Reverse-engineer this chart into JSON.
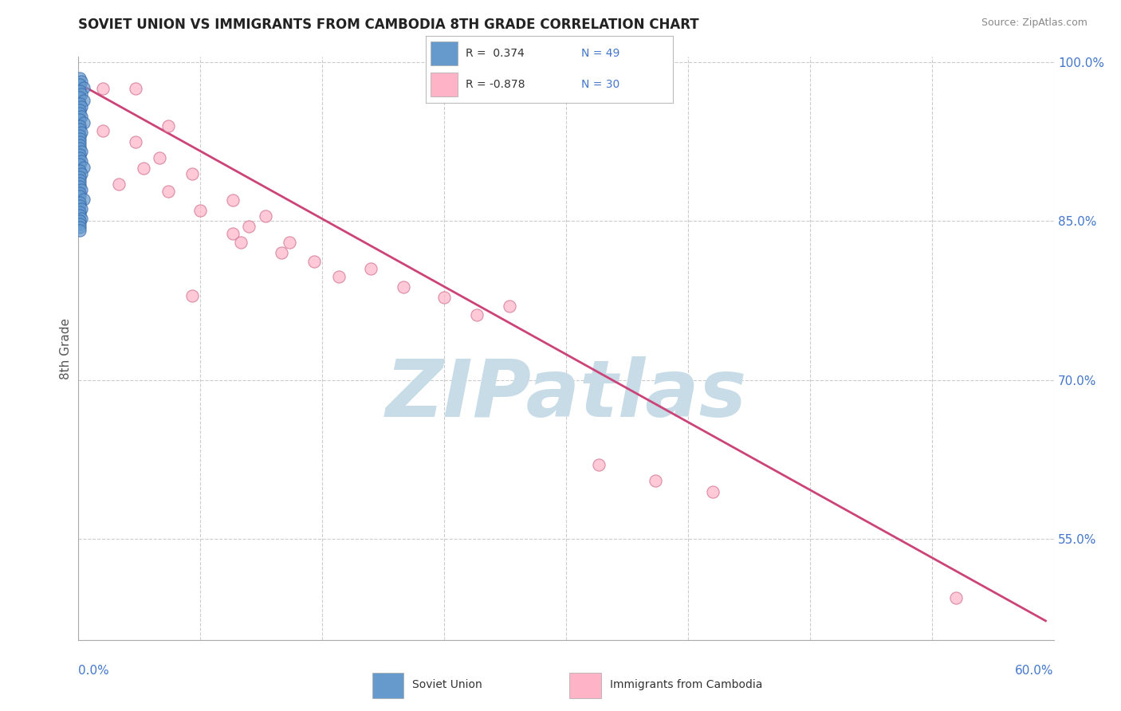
{
  "title": "SOVIET UNION VS IMMIGRANTS FROM CAMBODIA 8TH GRADE CORRELATION CHART",
  "source": "Source: ZipAtlas.com",
  "ylabel": "8th Grade",
  "watermark": "ZIPatlas",
  "legend_blue_R": "0.374",
  "legend_blue_N": "49",
  "legend_pink_R": "-0.878",
  "legend_pink_N": "30",
  "blue_color": "#6699CC",
  "blue_edge_color": "#3366AA",
  "pink_color": "#FFB3C6",
  "pink_edge_color": "#CC6688",
  "pink_line_color": "#CC4477",
  "blue_scatter": [
    [
      0.001,
      0.985
    ],
    [
      0.002,
      0.982
    ],
    [
      0.001,
      0.979
    ],
    [
      0.003,
      0.976
    ],
    [
      0.001,
      0.973
    ],
    [
      0.002,
      0.97
    ],
    [
      0.001,
      0.967
    ],
    [
      0.003,
      0.964
    ],
    [
      0.001,
      0.961
    ],
    [
      0.002,
      0.958
    ],
    [
      0.001,
      0.955
    ],
    [
      0.001,
      0.952
    ],
    [
      0.002,
      0.949
    ],
    [
      0.001,
      0.946
    ],
    [
      0.003,
      0.943
    ],
    [
      0.001,
      0.94
    ],
    [
      0.001,
      0.937
    ],
    [
      0.002,
      0.934
    ],
    [
      0.001,
      0.931
    ],
    [
      0.001,
      0.928
    ],
    [
      0.001,
      0.925
    ],
    [
      0.001,
      0.922
    ],
    [
      0.001,
      0.919
    ],
    [
      0.002,
      0.916
    ],
    [
      0.001,
      0.913
    ],
    [
      0.001,
      0.91
    ],
    [
      0.002,
      0.907
    ],
    [
      0.001,
      0.904
    ],
    [
      0.003,
      0.901
    ],
    [
      0.001,
      0.898
    ],
    [
      0.002,
      0.895
    ],
    [
      0.001,
      0.892
    ],
    [
      0.001,
      0.889
    ],
    [
      0.001,
      0.886
    ],
    [
      0.001,
      0.883
    ],
    [
      0.002,
      0.88
    ],
    [
      0.001,
      0.877
    ],
    [
      0.001,
      0.874
    ],
    [
      0.003,
      0.871
    ],
    [
      0.001,
      0.868
    ],
    [
      0.001,
      0.865
    ],
    [
      0.002,
      0.862
    ],
    [
      0.001,
      0.859
    ],
    [
      0.001,
      0.856
    ],
    [
      0.002,
      0.853
    ],
    [
      0.001,
      0.85
    ],
    [
      0.001,
      0.847
    ],
    [
      0.001,
      0.844
    ],
    [
      0.001,
      0.841
    ]
  ],
  "pink_scatter": [
    [
      0.015,
      0.975
    ],
    [
      0.035,
      0.975
    ],
    [
      0.015,
      0.935
    ],
    [
      0.055,
      0.94
    ],
    [
      0.035,
      0.925
    ],
    [
      0.05,
      0.91
    ],
    [
      0.04,
      0.9
    ],
    [
      0.07,
      0.895
    ],
    [
      0.025,
      0.885
    ],
    [
      0.055,
      0.878
    ],
    [
      0.095,
      0.87
    ],
    [
      0.075,
      0.86
    ],
    [
      0.115,
      0.855
    ],
    [
      0.105,
      0.845
    ],
    [
      0.095,
      0.838
    ],
    [
      0.13,
      0.83
    ],
    [
      0.125,
      0.82
    ],
    [
      0.145,
      0.812
    ],
    [
      0.18,
      0.805
    ],
    [
      0.16,
      0.798
    ],
    [
      0.2,
      0.788
    ],
    [
      0.225,
      0.778
    ],
    [
      0.265,
      0.77
    ],
    [
      0.245,
      0.762
    ],
    [
      0.07,
      0.78
    ],
    [
      0.1,
      0.83
    ],
    [
      0.32,
      0.62
    ],
    [
      0.355,
      0.605
    ],
    [
      0.39,
      0.595
    ],
    [
      0.54,
      0.495
    ]
  ],
  "pink_line_x": [
    0.0,
    0.595
  ],
  "pink_line_y": [
    0.98,
    0.473
  ],
  "xmin": 0.0,
  "xmax": 0.6,
  "ymin": 0.455,
  "ymax": 1.005,
  "yticks": [
    1.0,
    0.85,
    0.7,
    0.55
  ],
  "ytick_labels": [
    "100.0%",
    "85.0%",
    "70.0%",
    "55.0%"
  ],
  "grid_color": "#CCCCCC",
  "background_color": "#FFFFFF",
  "watermark_color": "#C8DCE8"
}
